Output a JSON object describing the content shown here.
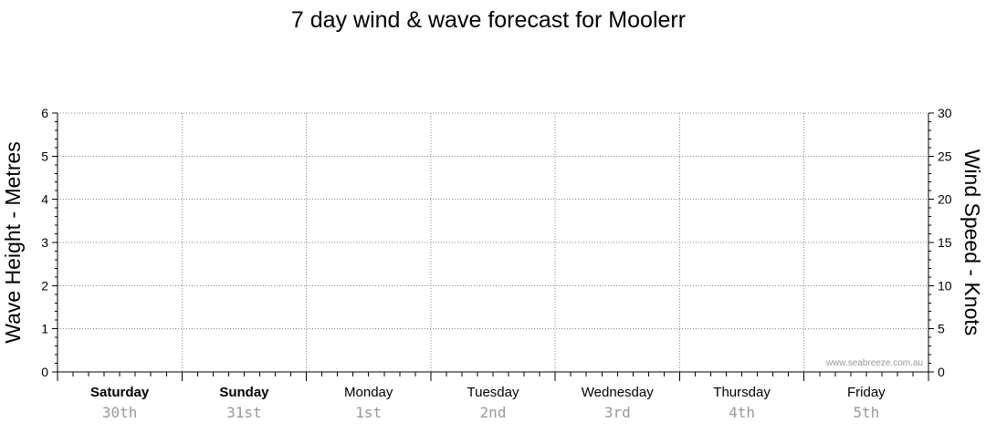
{
  "chart_data": {
    "type": "line",
    "title": "7 day wind & wave forecast for Moolerr",
    "ylabel_left": "Wave Height - Metres",
    "ylabel_right": "Wind Speed - Knots",
    "ylim_left": [
      0,
      6
    ],
    "ylim_right": [
      0,
      30
    ],
    "yticks_left": [
      "0",
      "1",
      "2",
      "3",
      "4",
      "5",
      "6"
    ],
    "yticks_right": [
      "0",
      "5",
      "10",
      "15",
      "20",
      "25",
      "30"
    ],
    "days": [
      {
        "name": "Saturday",
        "date": "30th",
        "bold": true
      },
      {
        "name": "Sunday",
        "date": "31st",
        "bold": true
      },
      {
        "name": "Monday",
        "date": "1st",
        "bold": false
      },
      {
        "name": "Tuesday",
        "date": "2nd",
        "bold": false
      },
      {
        "name": "Wednesday",
        "date": "3rd",
        "bold": false
      },
      {
        "name": "Thursday",
        "date": "4th",
        "bold": false
      },
      {
        "name": "Friday",
        "date": "5th",
        "bold": false
      }
    ],
    "series": [],
    "grid": true,
    "watermark": "www.seabreeze.com.au"
  }
}
